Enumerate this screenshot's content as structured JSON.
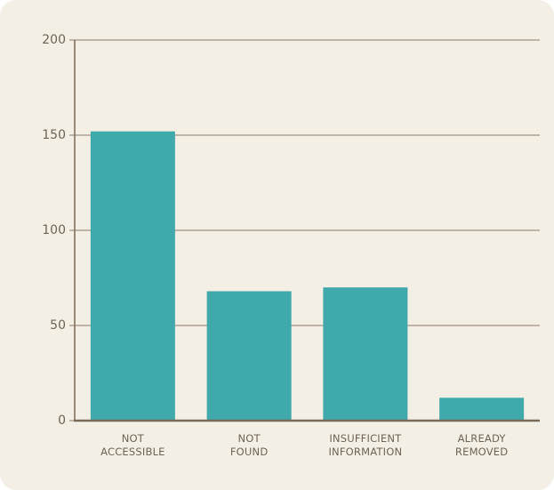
{
  "chart_data": {
    "type": "bar",
    "categories": [
      "NOT ACCESSIBLE",
      "NOT FOUND",
      "INSUFFICIENT INFORMATION",
      "ALREADY REMOVED"
    ],
    "values": [
      152,
      68,
      70,
      12
    ],
    "color": "#3fa9ab",
    "ylim": [
      0,
      200
    ],
    "yticks": [
      0,
      50,
      100,
      150,
      200
    ],
    "grid": true
  }
}
